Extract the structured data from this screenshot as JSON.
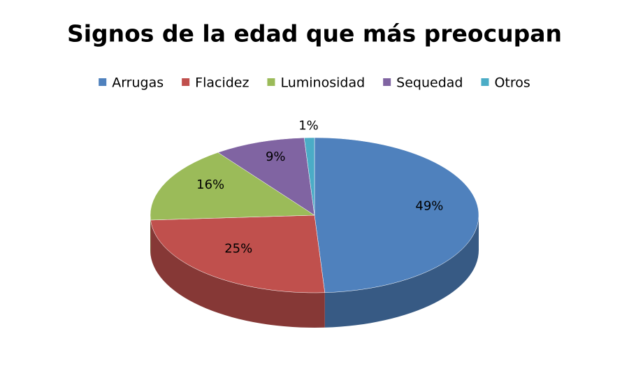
{
  "chart_data": {
    "type": "pie3d",
    "title": "Signos de la edad que más preocupan",
    "categories": [
      "Arrugas",
      "Flacidez",
      "Luminosidad",
      "Sequedad",
      "Otros"
    ],
    "values": [
      49,
      25,
      16,
      9,
      1
    ],
    "value_labels": [
      "49%",
      "25%",
      "16%",
      "9%",
      "1%"
    ],
    "colors": [
      "#4f81bd",
      "#c0504d",
      "#9bbb59",
      "#8064a2",
      "#4bacc6"
    ],
    "legend": "top"
  }
}
